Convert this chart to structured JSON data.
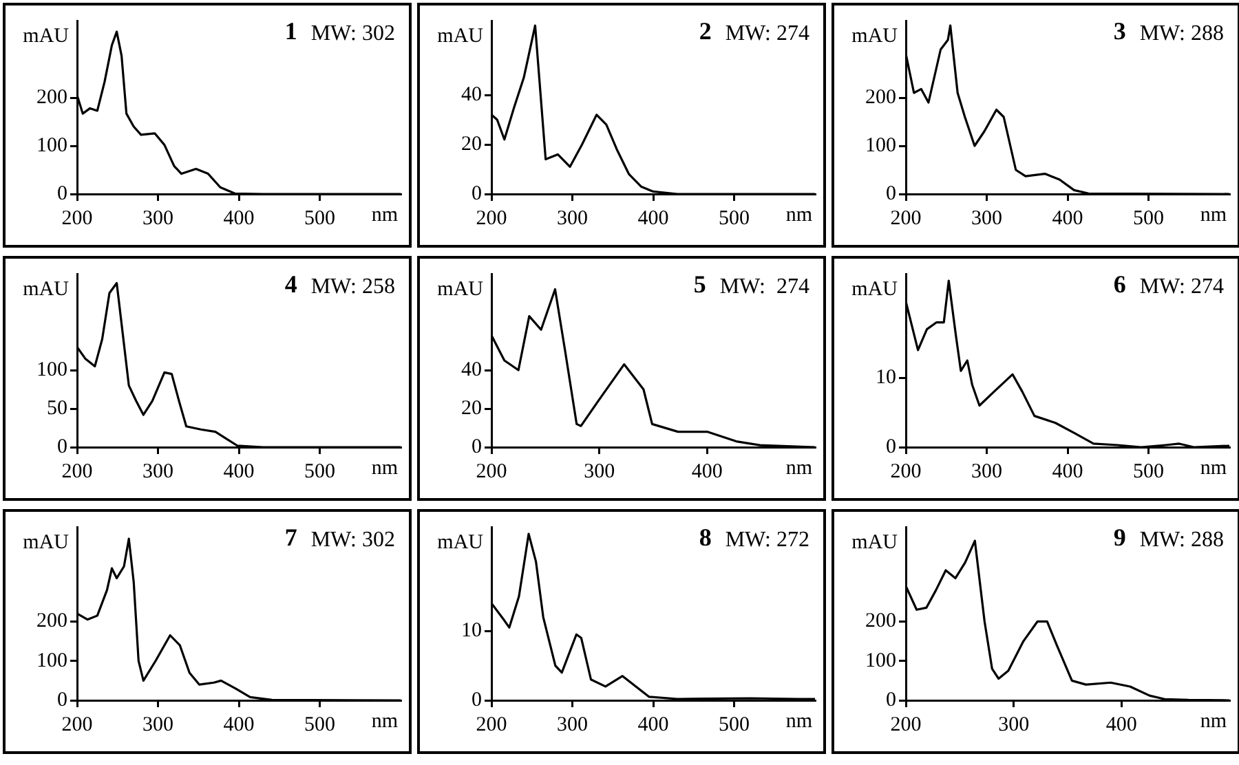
{
  "chart_data": [
    {
      "type": "line",
      "title": "1",
      "annotations": [
        "MW: 302"
      ],
      "xlabel": "nm",
      "ylabel": "mAU",
      "color": "#000000",
      "xlim": [
        200,
        600
      ],
      "xticks": [
        200,
        300,
        400,
        500
      ],
      "ylim": [
        0,
        360
      ],
      "yticks": [
        0,
        100,
        200
      ],
      "x": [
        200,
        207,
        216,
        225,
        234,
        243,
        249,
        255,
        261,
        270,
        279,
        296,
        308,
        320,
        329,
        347,
        362,
        377,
        395,
        430,
        600
      ],
      "values": [
        205,
        167,
        178,
        173,
        233,
        309,
        337,
        287,
        167,
        140,
        123,
        126,
        102,
        58,
        42,
        52,
        42,
        14,
        1,
        0,
        0
      ]
    },
    {
      "type": "line",
      "title": "2",
      "annotations": [
        "MW: 274"
      ],
      "xlabel": "nm",
      "ylabel": "mAU",
      "color": "#000000",
      "xlim": [
        200,
        600
      ],
      "xticks": [
        200,
        300,
        400,
        500
      ],
      "ylim": [
        0,
        70
      ],
      "yticks": [
        0,
        20,
        40
      ],
      "x": [
        200,
        207,
        216,
        228,
        240,
        254,
        267,
        282,
        297,
        312,
        330,
        342,
        355,
        370,
        385,
        400,
        430,
        600
      ],
      "values": [
        32,
        30,
        22,
        35,
        47,
        68,
        14,
        16,
        11,
        20,
        32,
        28,
        18,
        8,
        3,
        1,
        0,
        0
      ]
    },
    {
      "type": "line",
      "title": "3",
      "annotations": [
        "MW: 288"
      ],
      "xlabel": "nm",
      "ylabel": "mAU",
      "color": "#000000",
      "xlim": [
        200,
        600
      ],
      "xticks": [
        200,
        300,
        400,
        500
      ],
      "ylim": [
        0,
        360
      ],
      "yticks": [
        0,
        100,
        200
      ],
      "x": [
        200,
        210,
        219,
        228,
        243,
        252,
        255,
        264,
        273,
        285,
        297,
        312,
        321,
        336,
        348,
        372,
        390,
        408,
        426,
        600
      ],
      "values": [
        291,
        210,
        218,
        190,
        300,
        320,
        350,
        210,
        160,
        100,
        130,
        175,
        160,
        50,
        37,
        42,
        30,
        8,
        1,
        0
      ]
    },
    {
      "type": "line",
      "title": "4",
      "annotations": [
        "MW: 258"
      ],
      "xlabel": "nm",
      "ylabel": "mAU",
      "color": "#000000",
      "xlim": [
        200,
        600
      ],
      "xticks": [
        200,
        300,
        400,
        500
      ],
      "ylim": [
        0,
        225
      ],
      "yticks": [
        0,
        50,
        100
      ],
      "x": [
        200,
        210,
        222,
        231,
        240,
        249,
        255,
        264,
        273,
        282,
        293,
        308,
        317,
        326,
        335,
        353,
        371,
        383,
        398,
        430,
        600
      ],
      "values": [
        130,
        115,
        105,
        140,
        200,
        213,
        160,
        80,
        60,
        42,
        60,
        97,
        95,
        60,
        27,
        23,
        20,
        12,
        2,
        0,
        0
      ]
    },
    {
      "type": "line",
      "title": "5",
      "annotations": [
        "MW:  274"
      ],
      "xlabel": "nm",
      "ylabel": "mAU",
      "color": "#000000",
      "xlim": [
        200,
        500
      ],
      "xticks": [
        200,
        300,
        400
      ],
      "ylim": [
        0,
        90
      ],
      "yticks": [
        0,
        20,
        40
      ],
      "x": [
        200,
        212,
        225,
        235,
        246,
        259,
        268,
        279,
        283,
        299,
        323,
        341,
        349,
        373,
        400,
        427,
        449,
        500
      ],
      "values": [
        58,
        45,
        40,
        68,
        61,
        82,
        51,
        12,
        11,
        24,
        43,
        30,
        12,
        8,
        8,
        3,
        1,
        0
      ]
    },
    {
      "type": "line",
      "title": "6",
      "annotations": [
        "MW: 274"
      ],
      "xlabel": "nm",
      "ylabel": "mAU",
      "color": "#000000",
      "xlim": [
        200,
        600
      ],
      "xticks": [
        200,
        300,
        400,
        500
      ],
      "ylim": [
        0,
        25
      ],
      "yticks": [
        0,
        10
      ],
      "x": [
        200,
        215,
        226,
        238,
        247,
        253,
        262,
        268,
        276,
        282,
        291,
        309,
        332,
        344,
        359,
        385,
        409,
        432,
        462,
        491,
        521,
        538,
        556,
        600
      ],
      "values": [
        21,
        14,
        17,
        18,
        18,
        24,
        16,
        11,
        12.5,
        9,
        6,
        8,
        10.5,
        8,
        4.5,
        3.5,
        2,
        0.5,
        0.3,
        0,
        0.3,
        0.5,
        0,
        0.2
      ]
    },
    {
      "type": "line",
      "title": "7",
      "annotations": [
        "MW: 302"
      ],
      "xlabel": "nm",
      "ylabel": "mAU",
      "color": "#000000",
      "xlim": [
        200,
        600
      ],
      "xticks": [
        200,
        300,
        400,
        500
      ],
      "ylim": [
        0,
        440
      ],
      "yticks": [
        0,
        100,
        200
      ],
      "x": [
        200,
        213,
        225,
        237,
        243,
        249,
        258,
        264,
        270,
        276,
        282,
        297,
        315,
        327,
        339,
        351,
        369,
        378,
        396,
        414,
        441,
        600
      ],
      "values": [
        220,
        205,
        215,
        280,
        335,
        310,
        340,
        410,
        300,
        100,
        50,
        100,
        165,
        140,
        70,
        40,
        45,
        50,
        30,
        8,
        1,
        0
      ]
    },
    {
      "type": "line",
      "title": "8",
      "annotations": [
        "MW: 272"
      ],
      "xlabel": "nm",
      "ylabel": "mAU",
      "color": "#000000",
      "xlim": [
        200,
        600
      ],
      "xticks": [
        200,
        300,
        400,
        500
      ],
      "ylim": [
        0,
        25
      ],
      "yticks": [
        0,
        10
      ],
      "x": [
        200,
        216,
        222,
        234,
        246,
        255,
        264,
        279,
        287,
        305,
        311,
        323,
        341,
        362,
        395,
        430,
        520,
        580,
        600
      ],
      "values": [
        14,
        11.5,
        10.5,
        15,
        24,
        20,
        12,
        5,
        4,
        9.5,
        9,
        3,
        2,
        3.5,
        0.5,
        0.2,
        0.3,
        0.2,
        0.2
      ]
    },
    {
      "type": "line",
      "title": "9",
      "annotations": [
        "MW: 288"
      ],
      "xlabel": "nm",
      "ylabel": "mAU",
      "color": "#000000",
      "xlim": [
        200,
        500
      ],
      "xticks": [
        200,
        300,
        400
      ],
      "ylim": [
        0,
        440
      ],
      "yticks": [
        0,
        100,
        200
      ],
      "x": [
        200,
        210,
        219,
        228,
        237,
        246,
        255,
        264,
        273,
        280,
        286,
        295,
        309,
        322,
        331,
        340,
        354,
        367,
        390,
        408,
        426,
        440,
        462,
        500
      ],
      "values": [
        290,
        230,
        235,
        280,
        330,
        310,
        350,
        405,
        200,
        80,
        55,
        75,
        150,
        200,
        200,
        140,
        50,
        40,
        45,
        35,
        12,
        3,
        1,
        0
      ]
    }
  ]
}
